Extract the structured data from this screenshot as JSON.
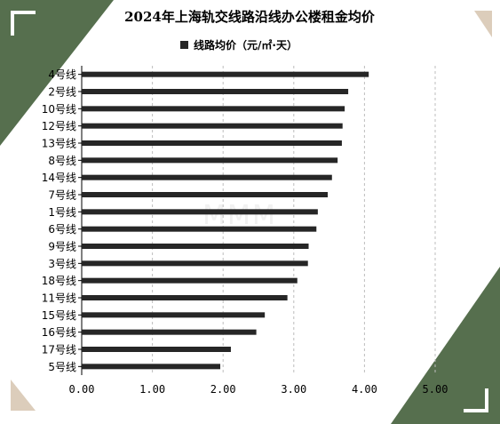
{
  "colors": {
    "background": "#ffffff",
    "bar": "#262626",
    "accent_dark": "#566f4e",
    "accent_light": "#dccdbb",
    "grid": "#bdbdbd",
    "text": "#000000"
  },
  "watermark": "MMM",
  "chart_data": {
    "type": "bar",
    "orientation": "horizontal",
    "title": "2024年上海轨交线路沿线办公楼租金均价",
    "legend": {
      "position": "top",
      "entries": [
        {
          "name": "线路均价（元/㎡·天）"
        }
      ]
    },
    "categories": [
      "4号线",
      "2号线",
      "10号线",
      "12号线",
      "13号线",
      "8号线",
      "14号线",
      "7号线",
      "1号线",
      "6号线",
      "9号线",
      "3号线",
      "18号线",
      "11号线",
      "15号线",
      "16号线",
      "17号线",
      "5号线"
    ],
    "series": [
      {
        "name": "线路均价（元/㎡·天）",
        "values": [
          4.06,
          3.77,
          3.72,
          3.69,
          3.68,
          3.62,
          3.54,
          3.48,
          3.34,
          3.32,
          3.21,
          3.2,
          3.05,
          2.91,
          2.59,
          2.47,
          2.11,
          1.96
        ]
      }
    ],
    "xlim": [
      0,
      5
    ],
    "x_ticks": [
      "0.00",
      "1.00",
      "2.00",
      "3.00",
      "4.00",
      "5.00"
    ],
    "grid": "vertical dashed",
    "xlabel": "",
    "ylabel": ""
  }
}
